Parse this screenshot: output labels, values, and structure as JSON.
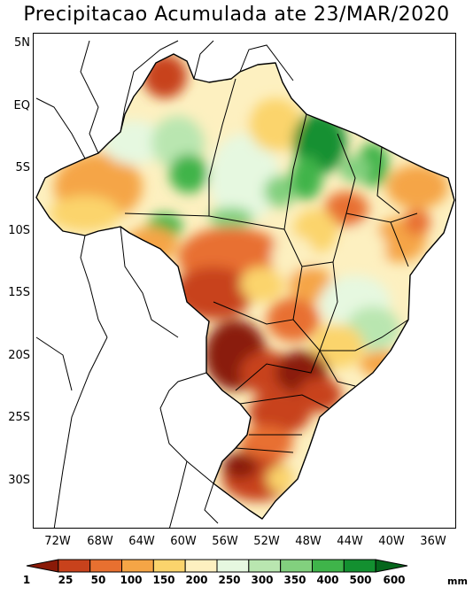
{
  "title": "Precipitacao Acumulada ate 23/MAR/2020",
  "lat_labels": [
    "5N",
    "EQ",
    "5S",
    "10S",
    "15S",
    "20S",
    "25S",
    "30S"
  ],
  "lon_labels": [
    "72W",
    "68W",
    "64W",
    "60W",
    "56W",
    "52W",
    "48W",
    "44W",
    "40W",
    "36W"
  ],
  "colorbar": {
    "labels": [
      "1",
      "25",
      "50",
      "100",
      "150",
      "200",
      "250",
      "300",
      "350",
      "400",
      "500",
      "600"
    ],
    "colors": [
      "#8a1a08",
      "#c8421c",
      "#e87030",
      "#f5a546",
      "#fbd46c",
      "#fdf0c0",
      "#e6f8e0",
      "#b9e6b0",
      "#82d07e",
      "#3fb44a",
      "#139030",
      "#06661c"
    ],
    "unit": "mm"
  },
  "chart_data": {
    "type": "heatmap",
    "title": "Precipitacao Acumulada ate 23/MAR/2020",
    "unit": "mm",
    "xlim": [
      "74W",
      "34W"
    ],
    "ylim": [
      "34S",
      "6N"
    ],
    "levels": [
      1,
      25,
      50,
      100,
      150,
      200,
      250,
      300,
      350,
      400,
      500,
      600
    ]
  }
}
